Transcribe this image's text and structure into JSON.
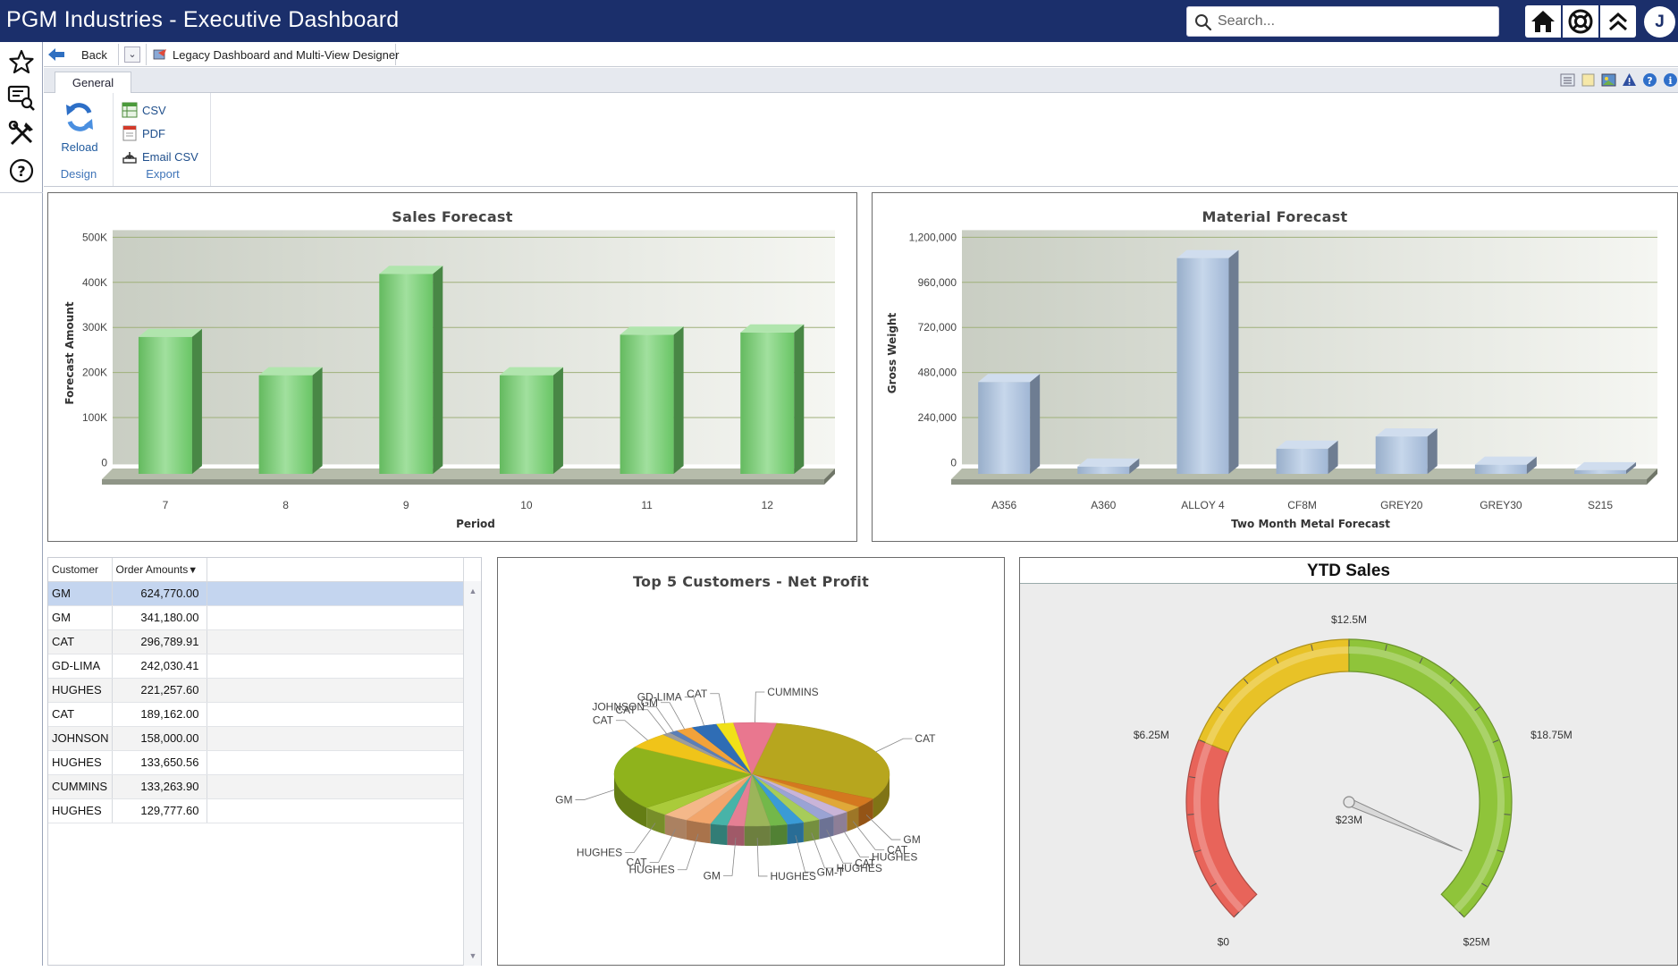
{
  "app": {
    "title": "PGM Industries - Executive Dashboard",
    "search_placeholder": "Search...",
    "user_initial": "J"
  },
  "breadcrumb": {
    "back_label": "Back",
    "designer_label": "Legacy Dashboard and Multi-View Designer"
  },
  "ribbon": {
    "tab_label": "General",
    "reload_label": "Reload",
    "design_group_label": "Design",
    "export_items": [
      "CSV",
      "PDF",
      "Email CSV"
    ],
    "export_group_label": "Export"
  },
  "colors": {
    "title_bar": "#1b2f6b",
    "sales_bar": "#6fcf6a",
    "material_bar": "#a9c1e0",
    "gauge_red": "#e8645a",
    "gauge_yellow": "#e8c227",
    "gauge_green": "#8fc43a"
  },
  "icons": [
    "search-icon",
    "home-icon",
    "lifebuoy-icon",
    "collapse-up-icon",
    "star-icon",
    "search-report-icon",
    "tools-icon",
    "question-icon",
    "back-arrow-icon",
    "chevron-down-icon",
    "designer-icon",
    "reload-icon",
    "csv-icon",
    "pdf-icon",
    "email-icon"
  ],
  "order_table": {
    "columns": [
      "Customer",
      "Order Amounts"
    ],
    "sort_indicator": "▼",
    "rows": [
      {
        "customer": "GM",
        "amount": "624,770.00"
      },
      {
        "customer": "GM",
        "amount": "341,180.00"
      },
      {
        "customer": "CAT",
        "amount": "296,789.91"
      },
      {
        "customer": "GD-LIMA",
        "amount": "242,030.41"
      },
      {
        "customer": "HUGHES",
        "amount": "221,257.60"
      },
      {
        "customer": "CAT",
        "amount": "189,162.00"
      },
      {
        "customer": "JOHNSON",
        "amount": "158,000.00"
      },
      {
        "customer": "HUGHES",
        "amount": "133,650.56"
      },
      {
        "customer": "CUMMINS",
        "amount": "133,263.90"
      },
      {
        "customer": "HUGHES",
        "amount": "129,777.60"
      }
    ]
  },
  "chart_data": [
    {
      "id": "sales",
      "type": "bar",
      "title": "Sales Forecast",
      "xlabel": "Period",
      "ylabel": "Forecast Amount",
      "categories": [
        "7",
        "8",
        "9",
        "10",
        "11",
        "12"
      ],
      "values": [
        300000,
        215000,
        440000,
        215000,
        305000,
        310000
      ],
      "ylim": [
        0,
        500000
      ],
      "yticks": [
        "0",
        "100K",
        "200K",
        "300K",
        "400K",
        "500K"
      ],
      "grid": true
    },
    {
      "id": "material",
      "type": "bar",
      "title": "Material Forecast",
      "xlabel": "Two Month Metal Forecast",
      "ylabel": "Gross Weight",
      "categories": [
        "A356",
        "A360",
        "ALLOY 4",
        "CF8M",
        "GREY20",
        "GREY30",
        "S215"
      ],
      "values": [
        480000,
        30000,
        1140000,
        125000,
        190000,
        40000,
        10000
      ],
      "ylim": [
        0,
        1200000
      ],
      "yticks": [
        "0",
        "240,000",
        "480,000",
        "720,000",
        "960,000",
        "1,200,000"
      ],
      "grid": true
    },
    {
      "id": "profit",
      "type": "pie",
      "title": "Top 5 Customers - Net Profit",
      "slices": [
        {
          "label": "CAT",
          "value": 30,
          "color": "#b7a61e"
        },
        {
          "label": "GM",
          "value": 3,
          "color": "#d4781f"
        },
        {
          "label": "CAT",
          "value": 2,
          "color": "#e0a838"
        },
        {
          "label": "HUGHES",
          "value": 2,
          "color": "#c9b4d8"
        },
        {
          "label": "CAT",
          "value": 2,
          "color": "#9aa3d4"
        },
        {
          "label": "HUGHES",
          "value": 2,
          "color": "#a7cc5a"
        },
        {
          "label": "GM-T",
          "value": 2,
          "color": "#3a9bd6"
        },
        {
          "label": "",
          "value": 2,
          "color": "#73b84a"
        },
        {
          "label": "HUGHES",
          "value": 3,
          "color": "#9cb55a"
        },
        {
          "label": "GM",
          "value": 2,
          "color": "#e57f94"
        },
        {
          "label": "",
          "value": 2,
          "color": "#48b3a8"
        },
        {
          "label": "HUGHES",
          "value": 3,
          "color": "#f2a56b"
        },
        {
          "label": "CAT",
          "value": 3,
          "color": "#f4b88a"
        },
        {
          "label": "HUGHES",
          "value": 3,
          "color": "#aacb3a"
        },
        {
          "label": "GM",
          "value": 20,
          "color": "#8fb31c"
        },
        {
          "label": "CAT",
          "value": 5,
          "color": "#f0c419"
        },
        {
          "label": "CAT",
          "value": 1,
          "color": "#9c9c9c"
        },
        {
          "label": "JOHNSON",
          "value": 1,
          "color": "#5b7fb8"
        },
        {
          "label": "GM",
          "value": 2,
          "color": "#f2a23a"
        },
        {
          "label": "GD-LIMA",
          "value": 3,
          "color": "#2f6db5"
        },
        {
          "label": "CAT",
          "value": 2,
          "color": "#f1e118"
        },
        {
          "label": "CUMMINS",
          "value": 5,
          "color": "#e9778f"
        }
      ]
    },
    {
      "id": "ytd",
      "type": "gauge",
      "title": "YTD Sales",
      "min": 0,
      "max": 25,
      "value": 23,
      "unit": "$M",
      "ticks": [
        "$0",
        "$6.25M",
        "$12.5M",
        "$18.75M",
        "$25M"
      ],
      "value_label": "$23M",
      "bands": [
        {
          "from": 0,
          "to": 6.25,
          "color": "#e8645a"
        },
        {
          "from": 6.25,
          "to": 12.5,
          "color": "#e8c227"
        },
        {
          "from": 12.5,
          "to": 25,
          "color": "#8fc43a"
        }
      ]
    }
  ]
}
